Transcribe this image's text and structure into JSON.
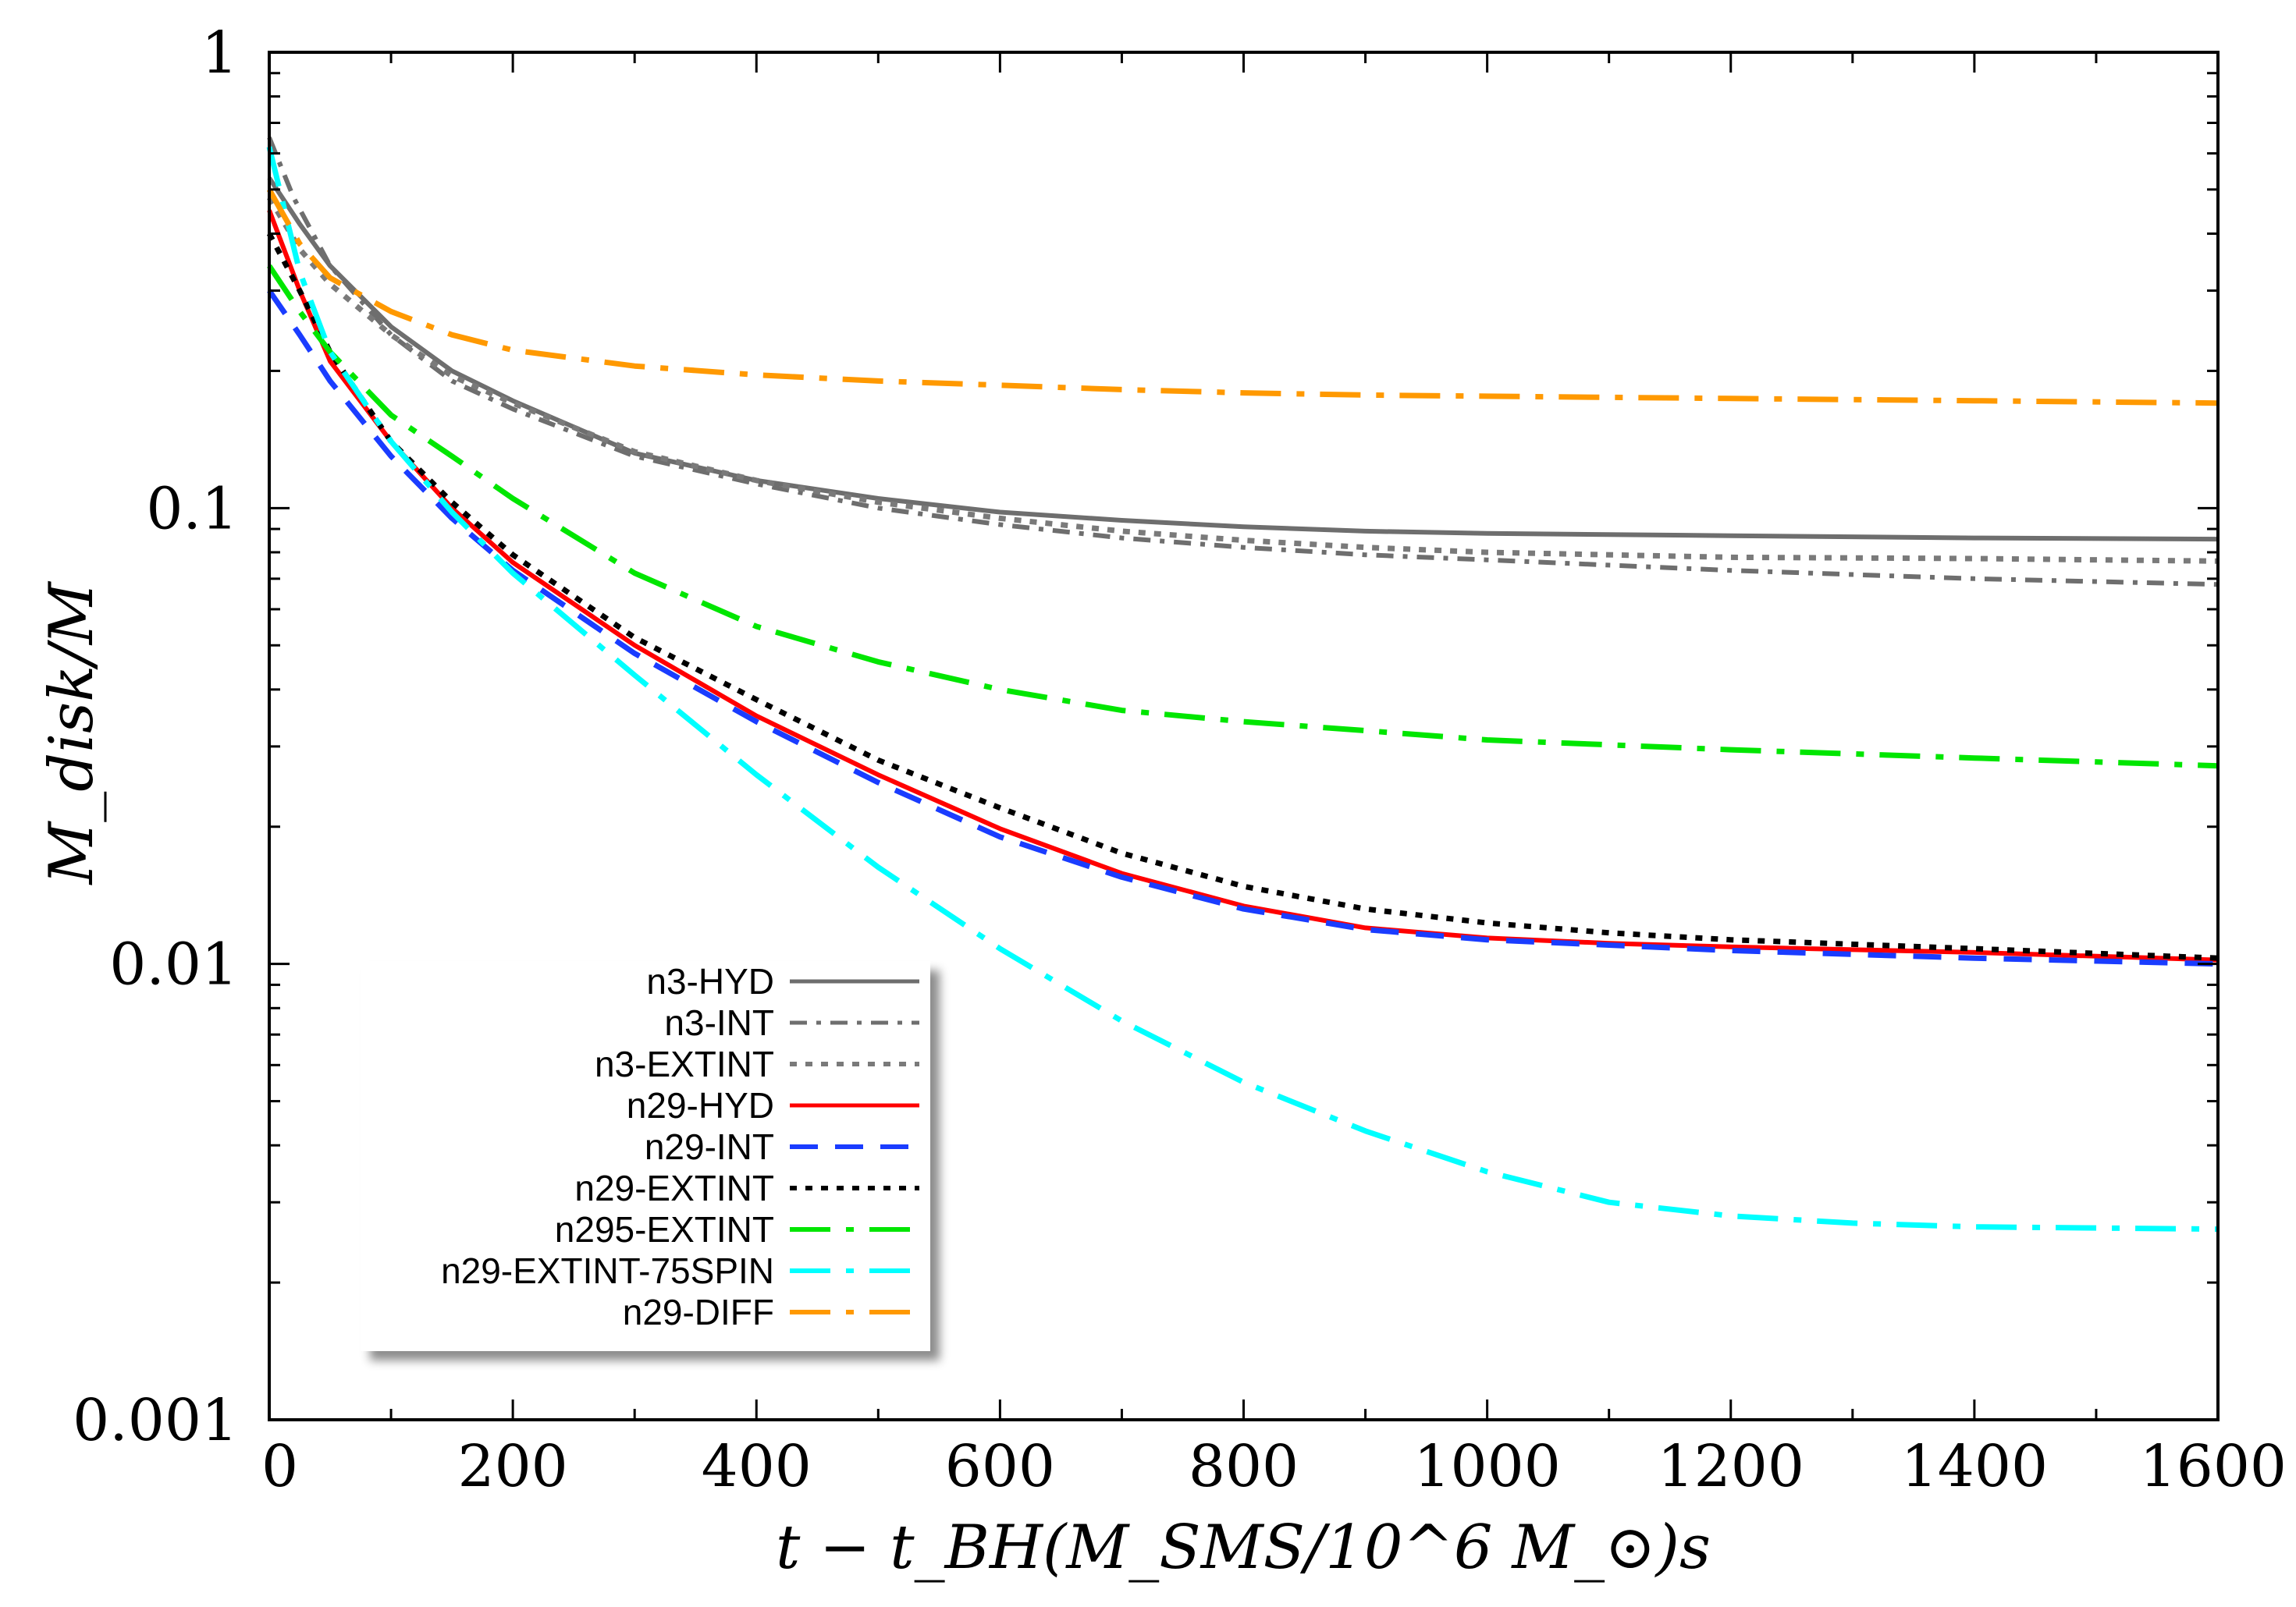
{
  "chart_data": {
    "type": "line",
    "title": "",
    "xlabel": "t − t_BH(M_SMS/10^6 M_⊙)s",
    "ylabel": "M_disk/M",
    "xlim": [
      0,
      1600
    ],
    "ylim": [
      0.001,
      1
    ],
    "yscale": "log",
    "grid": false,
    "legend_position": "bottom-left",
    "x_ticks": [
      "0",
      "200",
      "400",
      "600",
      "800",
      "1000",
      "1200",
      "1400",
      "1600"
    ],
    "y_ticks": [
      "0.001",
      "0.01",
      "0.1",
      "1"
    ],
    "series": [
      {
        "name": "n3-HYD",
        "color": "#6e6e6e",
        "dash": "solid",
        "points": [
          [
            0,
            0.53
          ],
          [
            25,
            0.42
          ],
          [
            50,
            0.34
          ],
          [
            100,
            0.25
          ],
          [
            150,
            0.2
          ],
          [
            200,
            0.172
          ],
          [
            300,
            0.132
          ],
          [
            400,
            0.115
          ],
          [
            500,
            0.105
          ],
          [
            600,
            0.098
          ],
          [
            700,
            0.094
          ],
          [
            800,
            0.091
          ],
          [
            900,
            0.089
          ],
          [
            1000,
            0.088
          ],
          [
            1200,
            0.087
          ],
          [
            1400,
            0.086
          ],
          [
            1600,
            0.0855
          ]
        ]
      },
      {
        "name": "n3-INT",
        "color": "#6e6e6e",
        "dash": "dashdot",
        "points": [
          [
            0,
            0.65
          ],
          [
            20,
            0.48
          ],
          [
            50,
            0.34
          ],
          [
            100,
            0.24
          ],
          [
            150,
            0.19
          ],
          [
            200,
            0.165
          ],
          [
            300,
            0.13
          ],
          [
            400,
            0.113
          ],
          [
            500,
            0.1
          ],
          [
            600,
            0.092
          ],
          [
            700,
            0.086
          ],
          [
            800,
            0.082
          ],
          [
            900,
            0.079
          ],
          [
            1000,
            0.077
          ],
          [
            1200,
            0.073
          ],
          [
            1400,
            0.07
          ],
          [
            1600,
            0.068
          ]
        ]
      },
      {
        "name": "n3-EXTINT",
        "color": "#7a7a7a",
        "dash": "dotted",
        "points": [
          [
            0,
            0.48
          ],
          [
            25,
            0.37
          ],
          [
            50,
            0.31
          ],
          [
            100,
            0.24
          ],
          [
            150,
            0.195
          ],
          [
            200,
            0.17
          ],
          [
            300,
            0.133
          ],
          [
            400,
            0.115
          ],
          [
            500,
            0.103
          ],
          [
            600,
            0.095
          ],
          [
            700,
            0.089
          ],
          [
            800,
            0.085
          ],
          [
            900,
            0.082
          ],
          [
            1000,
            0.08
          ],
          [
            1200,
            0.078
          ],
          [
            1400,
            0.0775
          ],
          [
            1600,
            0.0765
          ]
        ]
      },
      {
        "name": "n29-HYD",
        "color": "#ff0000",
        "dash": "solid",
        "points": [
          [
            0,
            0.45
          ],
          [
            25,
            0.3
          ],
          [
            50,
            0.21
          ],
          [
            100,
            0.14
          ],
          [
            150,
            0.1
          ],
          [
            200,
            0.076
          ],
          [
            300,
            0.05
          ],
          [
            400,
            0.035
          ],
          [
            500,
            0.026
          ],
          [
            600,
            0.0198
          ],
          [
            700,
            0.0158
          ],
          [
            800,
            0.0134
          ],
          [
            900,
            0.012
          ],
          [
            1000,
            0.0114
          ],
          [
            1100,
            0.0111
          ],
          [
            1200,
            0.0109
          ],
          [
            1400,
            0.0106
          ],
          [
            1600,
            0.0102
          ]
        ]
      },
      {
        "name": "n29-INT",
        "color": "#1a3cff",
        "dash": "dashed",
        "points": [
          [
            0,
            0.3
          ],
          [
            25,
            0.24
          ],
          [
            50,
            0.19
          ],
          [
            100,
            0.13
          ],
          [
            150,
            0.095
          ],
          [
            200,
            0.073
          ],
          [
            300,
            0.048
          ],
          [
            400,
            0.034
          ],
          [
            500,
            0.025
          ],
          [
            600,
            0.019
          ],
          [
            700,
            0.0155
          ],
          [
            800,
            0.0132
          ],
          [
            900,
            0.0119
          ],
          [
            1000,
            0.0113
          ],
          [
            1100,
            0.011
          ],
          [
            1200,
            0.0107
          ],
          [
            1400,
            0.0103
          ],
          [
            1600,
            0.01
          ]
        ]
      },
      {
        "name": "n29-EXTINT",
        "color": "#000000",
        "dash": "dotted",
        "points": [
          [
            0,
            0.4
          ],
          [
            25,
            0.3
          ],
          [
            50,
            0.22
          ],
          [
            100,
            0.14
          ],
          [
            150,
            0.103
          ],
          [
            200,
            0.079
          ],
          [
            300,
            0.052
          ],
          [
            400,
            0.038
          ],
          [
            500,
            0.028
          ],
          [
            600,
            0.022
          ],
          [
            700,
            0.0175
          ],
          [
            800,
            0.0148
          ],
          [
            900,
            0.0132
          ],
          [
            1000,
            0.0123
          ],
          [
            1100,
            0.0117
          ],
          [
            1200,
            0.0113
          ],
          [
            1400,
            0.0108
          ],
          [
            1600,
            0.0103
          ]
        ]
      },
      {
        "name": "n295-EXTINT",
        "color": "#00e600",
        "dash": "longdashdot",
        "points": [
          [
            0,
            0.34
          ],
          [
            25,
            0.27
          ],
          [
            50,
            0.22
          ],
          [
            100,
            0.16
          ],
          [
            150,
            0.13
          ],
          [
            200,
            0.105
          ],
          [
            300,
            0.072
          ],
          [
            400,
            0.055
          ],
          [
            500,
            0.046
          ],
          [
            600,
            0.04
          ],
          [
            700,
            0.036
          ],
          [
            800,
            0.034
          ],
          [
            900,
            0.0325
          ],
          [
            1000,
            0.031
          ],
          [
            1200,
            0.0295
          ],
          [
            1400,
            0.0283
          ],
          [
            1600,
            0.0272
          ]
        ]
      },
      {
        "name": "n29-EXTINT-75SPIN",
        "color": "#00ffff",
        "dash": "longdashdot",
        "points": [
          [
            0,
            0.62
          ],
          [
            25,
            0.33
          ],
          [
            50,
            0.22
          ],
          [
            100,
            0.14
          ],
          [
            150,
            0.098
          ],
          [
            200,
            0.072
          ],
          [
            300,
            0.043
          ],
          [
            400,
            0.026
          ],
          [
            500,
            0.0163
          ],
          [
            600,
            0.0108
          ],
          [
            700,
            0.0075
          ],
          [
            800,
            0.0055
          ],
          [
            900,
            0.0043
          ],
          [
            1000,
            0.0035
          ],
          [
            1100,
            0.003
          ],
          [
            1200,
            0.0028
          ],
          [
            1300,
            0.0027
          ],
          [
            1400,
            0.00265
          ],
          [
            1600,
            0.00262
          ]
        ]
      },
      {
        "name": "n29-DIFF",
        "color": "#ff9900",
        "dash": "longdashdot",
        "points": [
          [
            0,
            0.5
          ],
          [
            25,
            0.38
          ],
          [
            50,
            0.32
          ],
          [
            100,
            0.27
          ],
          [
            150,
            0.24
          ],
          [
            200,
            0.222
          ],
          [
            300,
            0.205
          ],
          [
            400,
            0.196
          ],
          [
            500,
            0.19
          ],
          [
            600,
            0.186
          ],
          [
            700,
            0.182
          ],
          [
            800,
            0.179
          ],
          [
            900,
            0.177
          ],
          [
            1000,
            0.176
          ],
          [
            1200,
            0.174
          ],
          [
            1400,
            0.172
          ],
          [
            1600,
            0.17
          ]
        ]
      }
    ]
  }
}
